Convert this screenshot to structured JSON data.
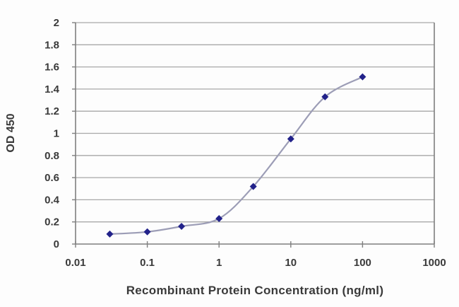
{
  "chart_data": {
    "type": "line",
    "title": "",
    "xlabel": "Recombinant Protein Concentration (ng/ml)",
    "ylabel": "OD 450",
    "x_scale": "log",
    "y_scale": "linear",
    "xlim": [
      0.01,
      1000
    ],
    "ylim": [
      0,
      2
    ],
    "x_ticks": [
      0.01,
      0.1,
      1,
      10,
      100,
      1000
    ],
    "x_tick_labels": [
      "0.01",
      "0.1",
      "1",
      "10",
      "100",
      "1000"
    ],
    "y_ticks": [
      0,
      0.2,
      0.4,
      0.6,
      0.8,
      1,
      1.2,
      1.4,
      1.6,
      1.8,
      2
    ],
    "y_tick_labels": [
      "0",
      "0.2",
      "0.4",
      "0.6",
      "0.8",
      "1",
      "1.2",
      "1.4",
      "1.6",
      "1.8",
      "2"
    ],
    "grid": "horizontal",
    "legend": "none",
    "series": [
      {
        "name": "OD 450",
        "marker": "diamond",
        "marker_color": "#22228A",
        "line_color": "#9C9DB6",
        "line_style": "smooth",
        "x": [
          0.03,
          0.1,
          0.3,
          1,
          3,
          10,
          30,
          100
        ],
        "y": [
          0.09,
          0.11,
          0.16,
          0.23,
          0.52,
          0.95,
          1.33,
          1.51
        ]
      }
    ],
    "colors": {
      "grid": "#A8A8A8",
      "axis": "#7F7F7F",
      "text": "#3A3A3A",
      "background": "#FDFDFD"
    }
  }
}
